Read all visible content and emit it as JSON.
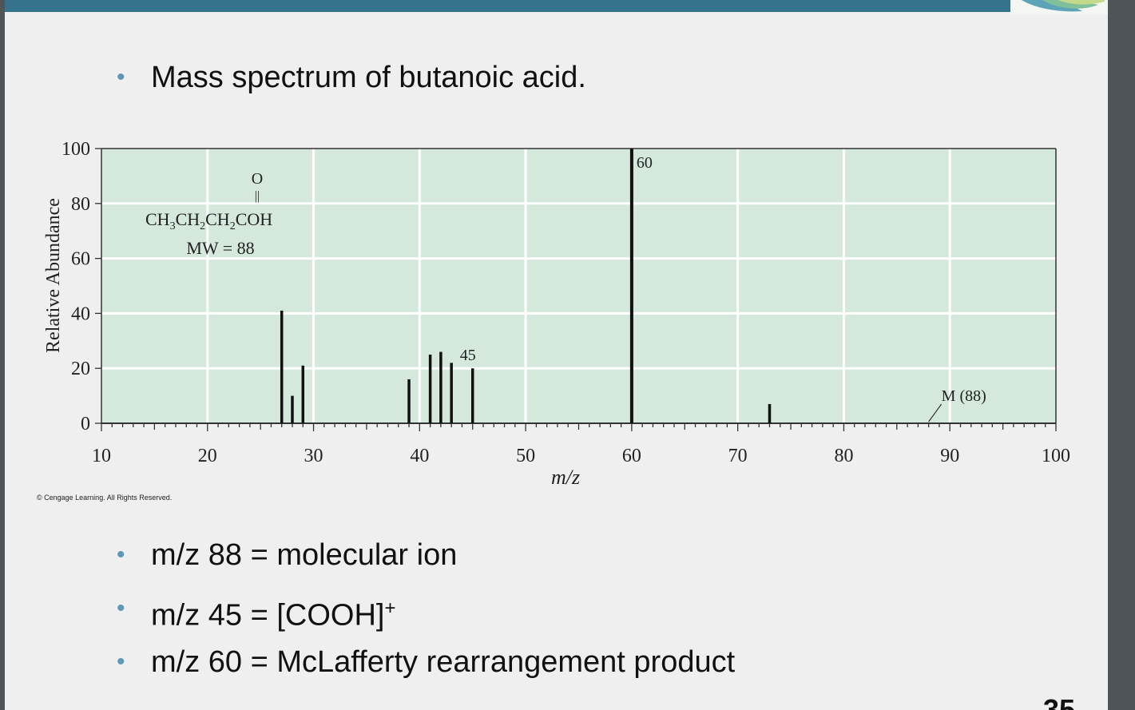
{
  "slide": {
    "title_bullet": "Mass spectrum of butanoic acid.",
    "bullets": [
      "m/z 88 = molecular ion",
      "m/z 45 = [COOH]",
      "m/z 60 = McLafferty rearrangement product"
    ],
    "bullet2_superscript": "+",
    "copyright": "© Cengage Learning. All Rights Reserved.",
    "page_number": "35",
    "bullet_symbol": "•"
  },
  "colors": {
    "top_bar": "#35728d",
    "plot_background": "#d4e8dc",
    "bullet_dot": "#5e98b5"
  },
  "chart_data": {
    "type": "bar",
    "xlabel": "m/z",
    "ylabel": "Relative Abundance",
    "xlim": [
      10,
      100
    ],
    "ylim": [
      0,
      100
    ],
    "xticks": [
      10,
      20,
      30,
      40,
      50,
      60,
      70,
      80,
      90,
      100
    ],
    "yticks": [
      0,
      20,
      40,
      60,
      80,
      100
    ],
    "grid": true,
    "peaks": [
      {
        "mz": 27,
        "abundance": 41
      },
      {
        "mz": 28,
        "abundance": 10
      },
      {
        "mz": 29,
        "abundance": 21
      },
      {
        "mz": 39,
        "abundance": 16
      },
      {
        "mz": 41,
        "abundance": 25
      },
      {
        "mz": 42,
        "abundance": 26
      },
      {
        "mz": 43,
        "abundance": 22
      },
      {
        "mz": 45,
        "abundance": 20
      },
      {
        "mz": 60,
        "abundance": 100
      },
      {
        "mz": 73,
        "abundance": 7
      }
    ],
    "annotations": {
      "peak60": "60",
      "peak45": "45",
      "molecular_ion": "M (88)",
      "molecular_ion_mz": 88,
      "formula_carbonyl_o": "O",
      "formula_double_bond": "||",
      "formula": "CH3CH2CH2COH",
      "molecular_weight": "MW = 88"
    }
  }
}
